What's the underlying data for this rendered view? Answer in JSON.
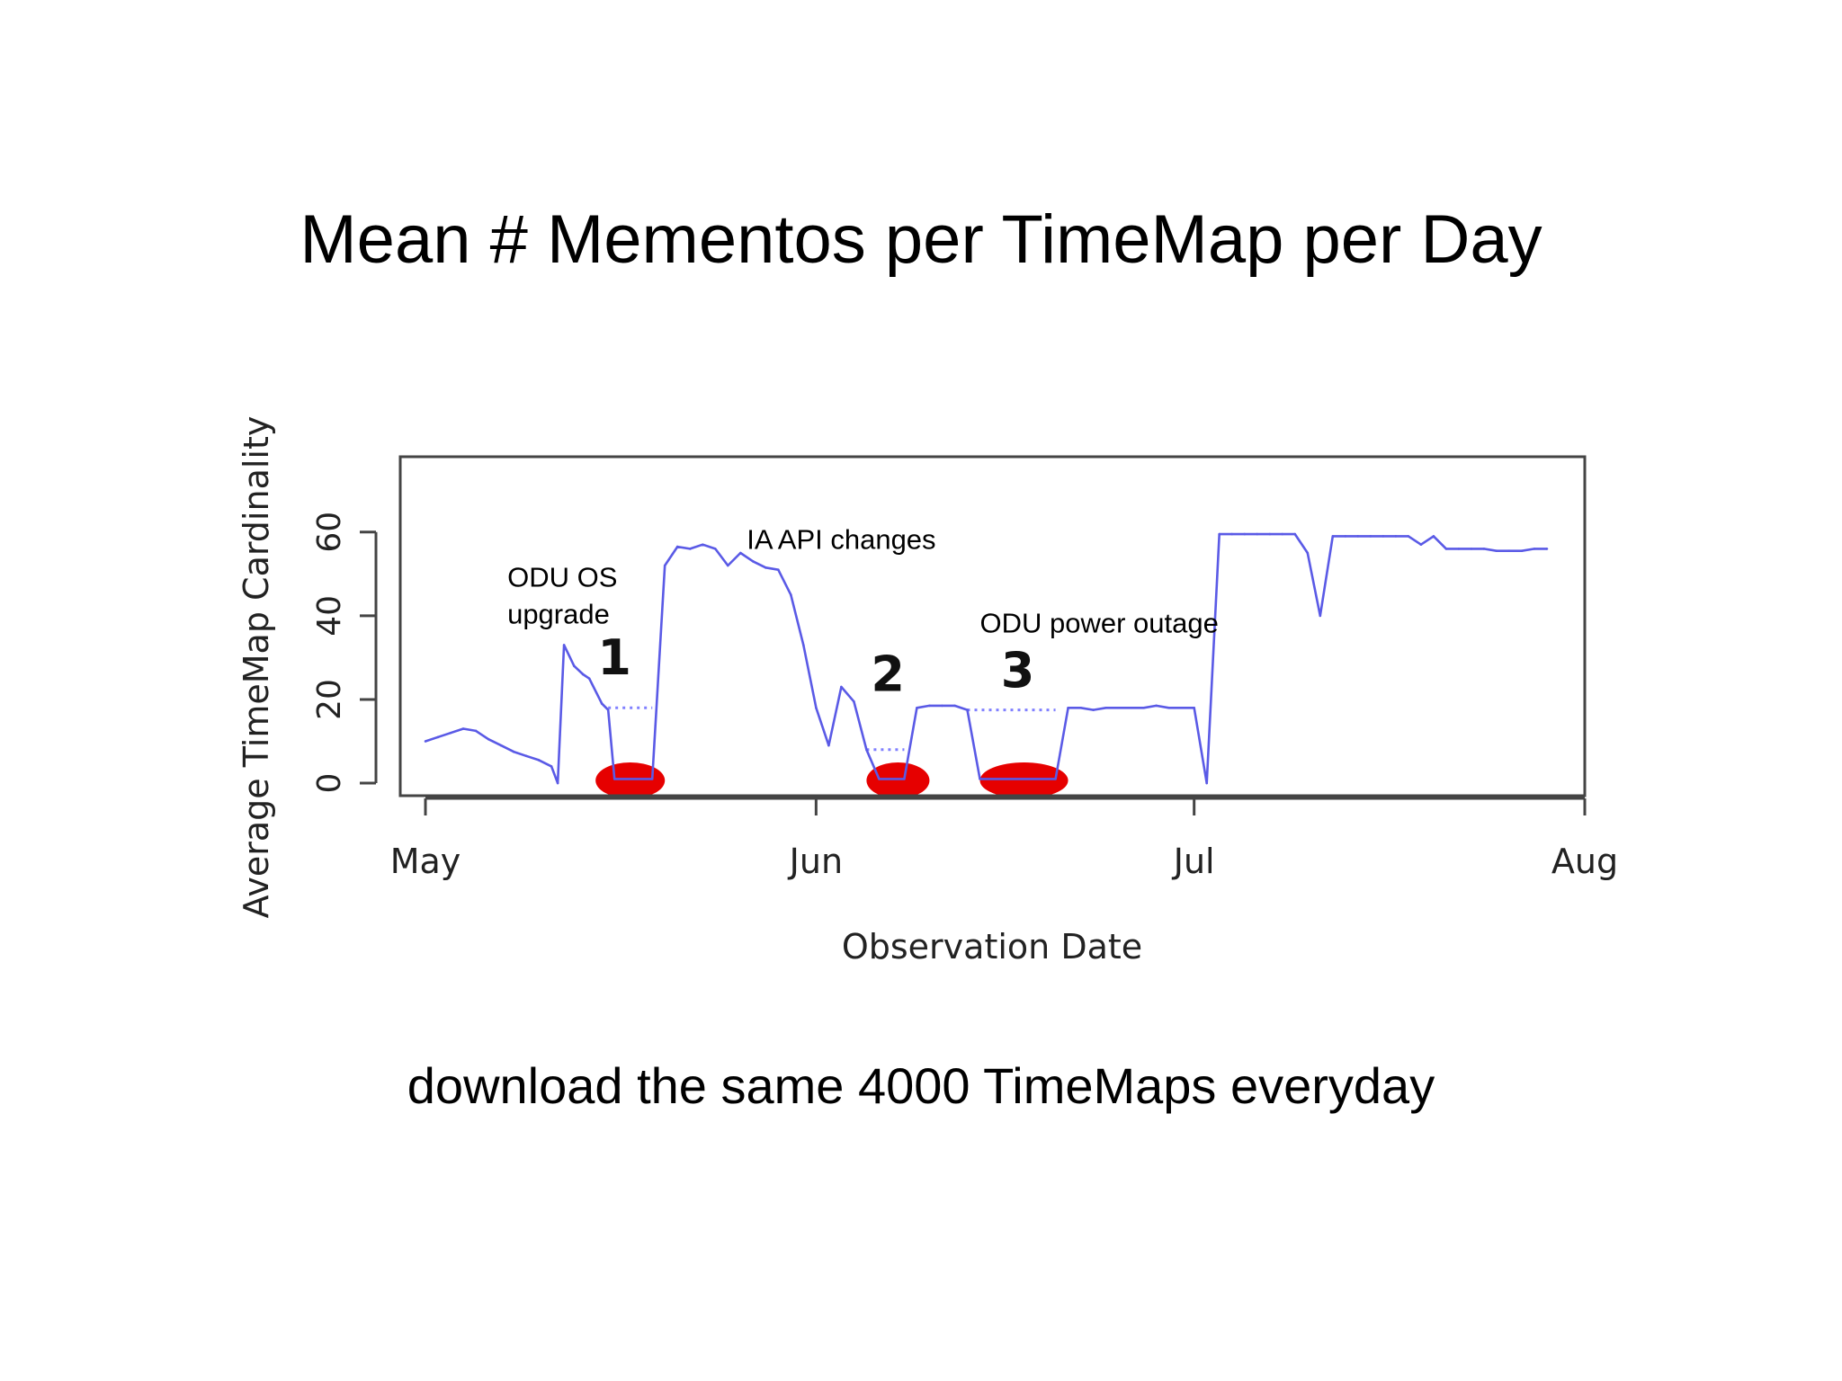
{
  "slide": {
    "title": "Mean # Mementos per TimeMap per Day",
    "caption": "download the same 4000 TimeMaps everyday"
  },
  "chart_data": {
    "type": "line",
    "title": "",
    "xlabel": "Observation Date",
    "ylabel": "Average TimeMap Cardinality",
    "xlim": [
      "2013-04-29",
      "2013-08-01"
    ],
    "ylim": [
      -3,
      78
    ],
    "x_ticks": [
      {
        "date": "2013-05-01",
        "label": "May"
      },
      {
        "date": "2013-06-01",
        "label": "Jun"
      },
      {
        "date": "2013-07-01",
        "label": "Jul"
      },
      {
        "date": "2013-08-01",
        "label": "Aug"
      }
    ],
    "y_ticks": [
      0,
      20,
      40,
      60
    ],
    "grid": false,
    "colors": {
      "line": "#5a5ae6",
      "gap": "#8080ff",
      "highlight": "#e60000",
      "frame": "#444444"
    },
    "series": [
      {
        "values": [
          [
            "2013-05-01",
            10
          ],
          [
            "2013-05-02",
            11
          ],
          [
            "2013-05-03",
            12
          ],
          [
            "2013-05-04",
            13
          ],
          [
            "2013-05-05",
            12.5
          ],
          [
            "2013-05-06",
            10.5
          ],
          [
            "2013-05-07",
            9
          ],
          [
            "2013-05-08",
            7.5
          ],
          [
            "2013-05-09",
            6.5
          ],
          [
            "2013-05-10",
            5.5
          ],
          [
            "2013-05-11",
            4
          ],
          [
            "2013-05-11.5",
            0
          ],
          [
            "2013-05-12",
            33
          ],
          [
            "2013-05-12.8",
            28
          ],
          [
            "2013-05-13.5",
            26
          ],
          [
            "2013-05-14",
            25
          ],
          [
            "2013-05-15",
            19
          ],
          [
            "2013-05-15.5",
            17.5
          ],
          [
            "2013-05-16",
            1
          ],
          [
            "2013-05-19",
            1
          ],
          [
            "2013-05-20",
            52
          ],
          [
            "2013-05-21",
            56.5
          ],
          [
            "2013-05-22",
            56
          ],
          [
            "2013-05-23",
            57
          ],
          [
            "2013-05-24",
            56
          ],
          [
            "2013-05-25",
            52
          ],
          [
            "2013-05-26",
            55
          ],
          [
            "2013-05-27",
            53
          ],
          [
            "2013-05-28",
            51.5
          ],
          [
            "2013-05-29",
            51
          ],
          [
            "2013-05-30",
            45
          ],
          [
            "2013-05-31",
            33
          ],
          [
            "2013-06-01",
            18
          ],
          [
            "2013-06-02",
            9
          ],
          [
            "2013-06-03",
            23
          ],
          [
            "2013-06-04",
            19.5
          ],
          [
            "2013-06-05",
            8
          ],
          [
            "2013-06-06",
            1
          ],
          [
            "2013-06-08",
            1
          ],
          [
            "2013-06-09",
            18
          ],
          [
            "2013-06-10",
            18.5
          ],
          [
            "2013-06-11",
            18.5
          ],
          [
            "2013-06-12",
            18.5
          ],
          [
            "2013-06-13",
            17.5
          ],
          [
            "2013-06-14",
            1
          ],
          [
            "2013-06-20",
            1
          ],
          [
            "2013-06-21",
            18
          ],
          [
            "2013-06-22",
            18
          ],
          [
            "2013-06-23",
            17.5
          ],
          [
            "2013-06-24",
            18
          ],
          [
            "2013-06-25",
            18
          ],
          [
            "2013-06-26",
            18
          ],
          [
            "2013-06-27",
            18
          ],
          [
            "2013-06-28",
            18.5
          ],
          [
            "2013-06-29",
            18
          ],
          [
            "2013-06-30",
            18
          ],
          [
            "2013-07-01",
            18
          ],
          [
            "2013-07-02",
            0
          ],
          [
            "2013-07-03",
            59.5
          ],
          [
            "2013-07-04",
            59.5
          ],
          [
            "2013-07-05",
            59.5
          ],
          [
            "2013-07-06",
            59.5
          ],
          [
            "2013-07-07",
            59.5
          ],
          [
            "2013-07-08",
            59.5
          ],
          [
            "2013-07-09",
            59.5
          ],
          [
            "2013-07-10",
            55
          ],
          [
            "2013-07-11",
            40
          ],
          [
            "2013-07-12",
            59
          ],
          [
            "2013-07-13",
            59
          ],
          [
            "2013-07-14",
            59
          ],
          [
            "2013-07-15",
            59
          ],
          [
            "2013-07-16",
            59
          ],
          [
            "2013-07-17",
            59
          ],
          [
            "2013-07-18",
            59
          ],
          [
            "2013-07-19",
            57
          ],
          [
            "2013-07-20",
            59
          ],
          [
            "2013-07-21",
            56
          ],
          [
            "2013-07-22",
            56
          ],
          [
            "2013-07-23",
            56
          ],
          [
            "2013-07-24",
            56
          ],
          [
            "2013-07-25",
            55.5
          ],
          [
            "2013-07-26",
            55.5
          ],
          [
            "2013-07-27",
            55.5
          ],
          [
            "2013-07-28",
            56
          ],
          [
            "2013-07-29",
            56
          ]
        ]
      }
    ],
    "gap_lines": [
      {
        "from": "2013-05-15.5",
        "to": "2013-05-19",
        "y": 18
      },
      {
        "from": "2013-06-05",
        "to": "2013-06-08",
        "y": 8
      },
      {
        "from": "2013-06-13",
        "to": "2013-06-20",
        "y": 17.5
      }
    ],
    "highlights": [
      {
        "from": "2013-05-14.5",
        "to": "2013-05-20"
      },
      {
        "from": "2013-06-05",
        "to": "2013-06-10"
      },
      {
        "from": "2013-06-14",
        "to": "2013-06-21"
      }
    ],
    "numbers": [
      {
        "label": "1",
        "date": "2013-05-16",
        "y": 26
      },
      {
        "label": "2",
        "date": "2013-06-06.7",
        "y": 22
      },
      {
        "label": "3",
        "date": "2013-06-17",
        "y": 23
      }
    ],
    "annotations": [
      {
        "lines": [
          "ODU OS",
          "upgrade"
        ],
        "date": "2013-05-07.5",
        "y": 47
      },
      {
        "lines": [
          "IA API changes"
        ],
        "date": "2013-05-26.5",
        "y": 56
      },
      {
        "lines": [
          "ODU power outage"
        ],
        "date": "2013-06-14",
        "y": 36
      }
    ]
  }
}
